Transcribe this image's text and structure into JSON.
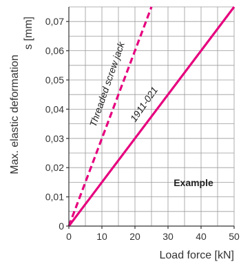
{
  "chart_data": {
    "type": "line",
    "xlabel": "Load force [kN]",
    "ylabel_line1": "Max. elastic deformation",
    "ylabel_line2": "s [mm]",
    "xlim": [
      0,
      50
    ],
    "ylim": [
      0,
      0.075
    ],
    "x_ticks": [
      0,
      10,
      20,
      30,
      40,
      50
    ],
    "x_tick_labels": [
      "0",
      "10",
      "20",
      "30",
      "40",
      "50"
    ],
    "y_ticks": [
      0,
      0.01,
      0.02,
      0.03,
      0.04,
      0.05,
      0.06,
      0.07
    ],
    "y_tick_labels": [
      "0",
      "0,01",
      "0,02",
      "0,03",
      "0,04",
      "0,05",
      "0,06",
      "0,07"
    ],
    "grid": true,
    "series": [
      {
        "name": "Threaded screw jack",
        "style": "dashed",
        "color": "#e6007e",
        "x": [
          0,
          25
        ],
        "y": [
          0,
          0.075
        ]
      },
      {
        "name": "1911-021",
        "style": "solid",
        "color": "#e6007e",
        "x": [
          0,
          50
        ],
        "y": [
          0,
          0.075
        ]
      }
    ],
    "annotation": "Example"
  }
}
